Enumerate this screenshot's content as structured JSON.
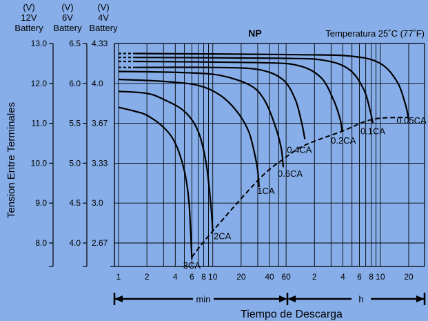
{
  "colors": {
    "background": "#87aee8",
    "ink": "#000000"
  },
  "chart_data": {
    "type": "line",
    "title": "NP",
    "subtitle": "Temperatura 25˚C (77˚F)",
    "xlabel": "Tiempo de Descarga",
    "ylabel": "Tension Entre Terminales",
    "x_scale": "log",
    "x_unit_min": "min",
    "x_unit_h": "h",
    "grid": true,
    "x_ticks": [
      {
        "label": "1",
        "minutes": 1
      },
      {
        "label": "2",
        "minutes": 2
      },
      {
        "label": "4",
        "minutes": 4
      },
      {
        "label": "6",
        "minutes": 6
      },
      {
        "label": "8",
        "minutes": 8
      },
      {
        "label": "10",
        "minutes": 10
      },
      {
        "label": "20",
        "minutes": 20
      },
      {
        "label": "40",
        "minutes": 40
      },
      {
        "label": "60",
        "minutes": 60
      },
      {
        "label": "2",
        "minutes": 120
      },
      {
        "label": "4",
        "minutes": 240
      },
      {
        "label": "6",
        "minutes": 360
      },
      {
        "label": "8",
        "minutes": 480
      },
      {
        "label": "10",
        "minutes": 600
      },
      {
        "label": "20",
        "minutes": 1200
      }
    ],
    "x_grid_minutes": [
      1,
      2,
      3,
      4,
      5,
      6,
      7,
      8,
      9,
      10,
      20,
      30,
      40,
      50,
      60,
      120,
      180,
      240,
      300,
      360,
      420,
      480,
      540,
      600,
      1200
    ],
    "ylim": [
      6.8,
      13.0
    ],
    "y_axes": [
      {
        "header": [
          "(V)",
          "12V",
          "Battery"
        ],
        "ticks": [
          {
            "label": "13.0",
            "v": 13.0
          },
          {
            "label": "12.0",
            "v": 12.0
          },
          {
            "label": "11.0",
            "v": 11.0
          },
          {
            "label": "10.0",
            "v": 10.0
          },
          {
            "label": "9.0",
            "v": 9.0
          },
          {
            "label": "8.0",
            "v": 8.0
          }
        ]
      },
      {
        "header": [
          "(V)",
          "6V",
          "Battery"
        ],
        "ticks": [
          {
            "label": "6.5",
            "v": 6.5
          },
          {
            "label": "6.0",
            "v": 6.0
          },
          {
            "label": "5.5",
            "v": 5.5
          },
          {
            "label": "5.0",
            "v": 5.0
          },
          {
            "label": "4.5",
            "v": 4.5
          },
          {
            "label": "4.0",
            "v": 4.0
          }
        ]
      },
      {
        "header": [
          "(V)",
          "4V",
          "Battery"
        ],
        "ticks": [
          {
            "label": "4.33",
            "v": 4.33
          },
          {
            "label": "4.0",
            "v": 4.0
          },
          {
            "label": "3.67",
            "v": 3.67
          },
          {
            "label": "3.33",
            "v": 3.33
          },
          {
            "label": "3.0",
            "v": 3.0
          },
          {
            "label": "2.67",
            "v": 2.67
          }
        ]
      }
    ],
    "series": [
      {
        "name": "3CA",
        "points": [
          [
            1,
            11.4
          ],
          [
            1.5,
            11.3
          ],
          [
            2,
            11.2
          ],
          [
            3,
            10.9
          ],
          [
            4,
            10.5
          ],
          [
            5,
            9.8
          ],
          [
            5.6,
            9.0
          ],
          [
            6,
            7.6
          ]
        ]
      },
      {
        "name": "2CA",
        "points": [
          [
            1,
            11.8
          ],
          [
            2,
            11.75
          ],
          [
            3,
            11.6
          ],
          [
            5,
            11.3
          ],
          [
            7,
            10.8
          ],
          [
            8.5,
            10.0
          ],
          [
            9.5,
            9.0
          ],
          [
            10,
            8.3
          ]
        ]
      },
      {
        "name": "1CA",
        "points": [
          [
            1,
            12.1
          ],
          [
            3,
            12.05
          ],
          [
            7,
            11.95
          ],
          [
            12,
            11.7
          ],
          [
            18,
            11.3
          ],
          [
            24,
            10.8
          ],
          [
            28,
            10.2
          ],
          [
            30,
            9.8
          ],
          [
            31,
            9.4
          ]
        ]
      },
      {
        "name": "0.6CA",
        "points": [
          [
            1,
            12.3
          ],
          [
            5,
            12.27
          ],
          [
            12,
            12.2
          ],
          [
            25,
            11.95
          ],
          [
            35,
            11.6
          ],
          [
            45,
            11.0
          ],
          [
            53,
            10.4
          ],
          [
            56,
            9.9
          ]
        ]
      },
      {
        "name": "0.4CA",
        "points": [
          [
            1,
            12.4
          ],
          [
            10,
            12.4
          ],
          [
            30,
            12.35
          ],
          [
            55,
            12.1
          ],
          [
            75,
            11.6
          ],
          [
            88,
            11.0
          ],
          [
            95,
            10.6
          ]
        ]
      },
      {
        "name": "0.2CA",
        "points": [
          [
            1,
            12.55
          ],
          [
            30,
            12.52
          ],
          [
            80,
            12.45
          ],
          [
            140,
            12.15
          ],
          [
            190,
            11.6
          ],
          [
            225,
            11.1
          ],
          [
            235,
            10.8
          ]
        ]
      },
      {
        "name": "0.1CA",
        "points": [
          [
            1,
            12.65
          ],
          [
            50,
            12.63
          ],
          [
            150,
            12.58
          ],
          [
            280,
            12.35
          ],
          [
            400,
            11.85
          ],
          [
            470,
            11.3
          ],
          [
            500,
            11.0
          ]
        ]
      },
      {
        "name": "0.05CA",
        "points": [
          [
            1,
            12.75
          ],
          [
            80,
            12.72
          ],
          [
            300,
            12.68
          ],
          [
            600,
            12.5
          ],
          [
            900,
            12.05
          ],
          [
            1100,
            11.5
          ],
          [
            1200,
            11.1
          ]
        ]
      }
    ],
    "cutoff_curve": [
      [
        6,
        7.65
      ],
      [
        10,
        8.3
      ],
      [
        31,
        9.6
      ],
      [
        56,
        10.1
      ],
      [
        95,
        10.45
      ],
      [
        235,
        10.8
      ],
      [
        500,
        11.1
      ],
      [
        1200,
        11.15
      ]
    ],
    "label_positions": [
      "below",
      "right",
      "right",
      "below",
      "below",
      "below",
      "below",
      "below"
    ]
  }
}
